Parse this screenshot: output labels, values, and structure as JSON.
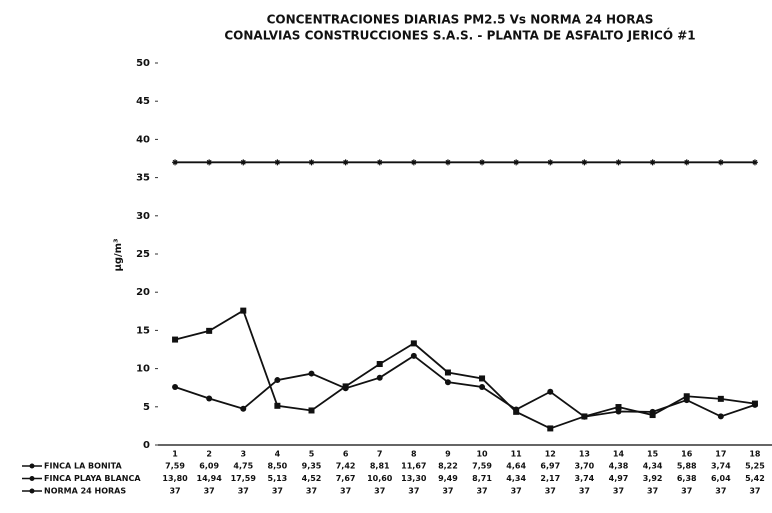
{
  "chart_data": {
    "type": "line",
    "title": "CONCENTRACIONES DIARIAS PM2.5 Vs NORMA 24 HORAS",
    "subtitle": "CONALVIAS CONSTRUCCIONES S.A.S. - PLANTA DE ASFALTO JERICÓ #1",
    "ylabel": "µg/m³",
    "categories": [
      "1",
      "2",
      "3",
      "4",
      "5",
      "6",
      "7",
      "8",
      "9",
      "10",
      "11",
      "12",
      "13",
      "14",
      "15",
      "16",
      "17",
      "18"
    ],
    "ylim": [
      0,
      50
    ],
    "yticks": [
      0,
      5,
      10,
      15,
      20,
      25,
      30,
      35,
      40,
      45,
      50
    ],
    "series": [
      {
        "name": "FINCA LA BONITA",
        "color": "#111111",
        "marker": "circle",
        "values": [
          7.59,
          6.09,
          4.75,
          8.5,
          9.35,
          7.42,
          8.81,
          11.67,
          8.22,
          7.59,
          4.64,
          6.97,
          3.7,
          4.38,
          4.34,
          5.88,
          3.74,
          5.25
        ],
        "value_labels": [
          "7,59",
          "6,09",
          "4,75",
          "8,50",
          "9,35",
          "7,42",
          "8,81",
          "11,67",
          "8,22",
          "7,59",
          "4,64",
          "6,97",
          "3,70",
          "4,38",
          "4,34",
          "5,88",
          "3,74",
          "5,25"
        ]
      },
      {
        "name": "FINCA PLAYA BLANCA",
        "color": "#111111",
        "marker": "square",
        "values": [
          13.8,
          14.94,
          17.59,
          5.13,
          4.52,
          7.67,
          10.6,
          13.3,
          9.49,
          8.71,
          4.34,
          2.17,
          3.74,
          4.97,
          3.92,
          6.38,
          6.04,
          5.42
        ],
        "value_labels": [
          "13,80",
          "14,94",
          "17,59",
          "5,13",
          "4,52",
          "7,67",
          "10,60",
          "13,30",
          "9,49",
          "8,71",
          "4,34",
          "2,17",
          "3,74",
          "4,97",
          "3,92",
          "6,38",
          "6,04",
          "5,42"
        ]
      },
      {
        "name": "NORMA 24 HORAS",
        "color": "#111111",
        "marker": "star",
        "values": [
          37,
          37,
          37,
          37,
          37,
          37,
          37,
          37,
          37,
          37,
          37,
          37,
          37,
          37,
          37,
          37,
          37,
          37
        ]
      }
    ]
  }
}
